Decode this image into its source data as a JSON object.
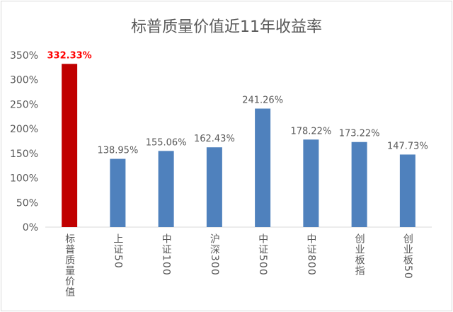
{
  "chart_data": {
    "type": "bar",
    "title": "标普质量价值近11年收益率",
    "categories": [
      "标普质量价值",
      "上证50",
      "中证100",
      "沪深300",
      "中证500",
      "中证800",
      "创业板指",
      "创业板50"
    ],
    "values": [
      332.33,
      138.95,
      155.06,
      162.43,
      241.26,
      178.22,
      173.22,
      147.73
    ],
    "data_labels": [
      "332.33%",
      "138.95%",
      "155.06%",
      "162.43%",
      "241.26%",
      "178.22%",
      "173.22%",
      "147.73%"
    ],
    "ylim": [
      0,
      350
    ],
    "yticks": [
      "0%",
      "50%",
      "100%",
      "150%",
      "200%",
      "250%",
      "300%",
      "350%"
    ],
    "grid": false,
    "legend": "none",
    "colors": {
      "highlight": "#C00000",
      "default": "#4F81BD",
      "highlight_label": "#FF0000",
      "text": "#595959"
    }
  }
}
